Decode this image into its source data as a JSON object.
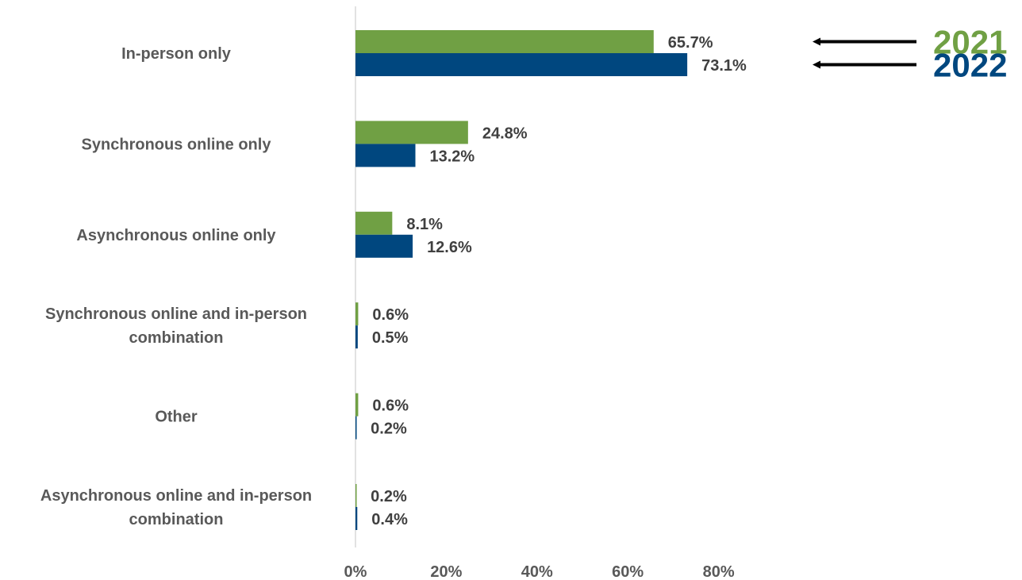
{
  "chart_data": {
    "type": "bar",
    "orientation": "horizontal",
    "categories": [
      [
        "In-person only"
      ],
      [
        "Synchronous online only"
      ],
      [
        "Asynchronous online only"
      ],
      [
        "Synchronous online and in-person",
        "combination"
      ],
      [
        "Other"
      ],
      [
        "Asynchronous online and in-person",
        "combination"
      ]
    ],
    "series": [
      {
        "name": "2021",
        "color": "#70A044",
        "values": [
          65.7,
          24.8,
          8.1,
          0.6,
          0.6,
          0.2
        ],
        "labels": [
          "65.7%",
          "24.8%",
          "8.1%",
          "0.6%",
          "0.6%",
          "0.2%"
        ]
      },
      {
        "name": "2022",
        "color": "#00477F",
        "values": [
          73.1,
          13.2,
          12.6,
          0.5,
          0.2,
          0.4
        ],
        "labels": [
          "73.1%",
          "13.2%",
          "12.6%",
          "0.5%",
          "0.2%",
          "0.4%"
        ]
      }
    ],
    "xlim": [
      0,
      80
    ],
    "xticks": [
      0,
      20,
      40,
      60,
      80
    ],
    "xtick_labels": [
      "0%",
      "20%",
      "40%",
      "60%",
      "80%"
    ],
    "legend_placement": "top-right",
    "legend_style": "arrows pointing to first category bars",
    "grid": false
  }
}
